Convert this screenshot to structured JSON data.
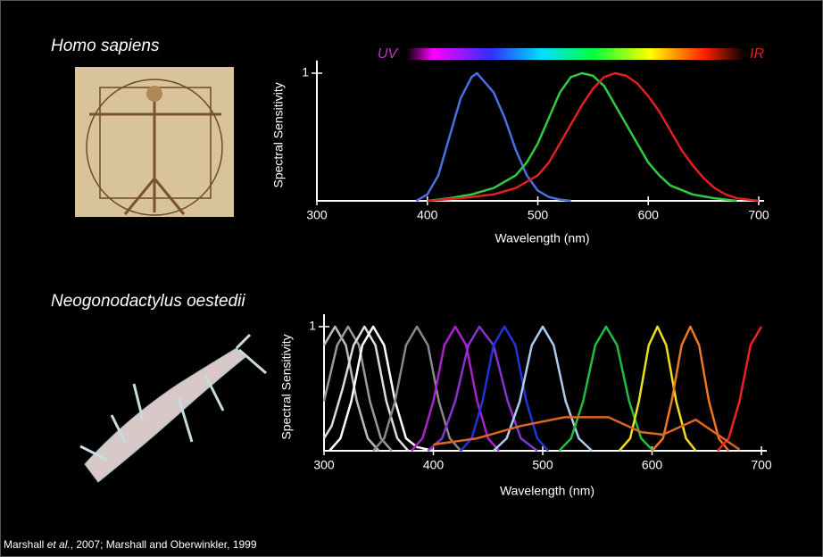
{
  "chart_data": [
    {
      "type": "line",
      "title": "Homo sapiens",
      "xlabel": "Wavelength (nm)",
      "ylabel": "Spectral Sensitivity",
      "annotations": [
        "UV",
        "IR"
      ],
      "xlim": [
        300,
        700
      ],
      "ylim": [
        0,
        1.1
      ],
      "xticks": [
        300,
        400,
        500,
        600,
        700
      ],
      "yticks": [
        1
      ],
      "series": [
        {
          "color": "#4a6fe0",
          "x": [
            390,
            400,
            410,
            420,
            430,
            440,
            445,
            450,
            460,
            470,
            480,
            490,
            500,
            510,
            520,
            530
          ],
          "values": [
            0,
            0.05,
            0.2,
            0.5,
            0.8,
            0.97,
            1,
            0.95,
            0.85,
            0.65,
            0.4,
            0.2,
            0.08,
            0.03,
            0.01,
            0
          ]
        },
        {
          "color": "#2ecc40",
          "x": [
            400,
            420,
            440,
            460,
            480,
            490,
            500,
            510,
            520,
            530,
            540,
            550,
            560,
            570,
            580,
            590,
            600,
            610,
            620,
            640,
            660,
            680
          ],
          "values": [
            0,
            0.02,
            0.05,
            0.1,
            0.2,
            0.3,
            0.45,
            0.65,
            0.85,
            0.97,
            1,
            0.98,
            0.9,
            0.75,
            0.6,
            0.45,
            0.3,
            0.2,
            0.12,
            0.05,
            0.02,
            0
          ]
        },
        {
          "color": "#e02020",
          "x": [
            400,
            430,
            460,
            480,
            500,
            510,
            520,
            530,
            540,
            550,
            560,
            570,
            580,
            590,
            600,
            610,
            620,
            630,
            640,
            650,
            660,
            670,
            680,
            700
          ],
          "values": [
            0,
            0.02,
            0.05,
            0.1,
            0.2,
            0.3,
            0.45,
            0.6,
            0.75,
            0.88,
            0.97,
            1,
            0.98,
            0.92,
            0.82,
            0.7,
            0.55,
            0.4,
            0.28,
            0.18,
            0.1,
            0.05,
            0.02,
            0
          ]
        }
      ]
    },
    {
      "type": "line",
      "title": "Neogonodactylus oestedii",
      "xlabel": "Wavelength (nm)",
      "ylabel": "Spectral Sensitivity",
      "xlim": [
        300,
        700
      ],
      "ylim": [
        0,
        1.1
      ],
      "xticks": [
        300,
        400,
        500,
        600,
        700
      ],
      "yticks": [
        1
      ],
      "series": [
        {
          "color": "#bbbbbb",
          "x": [
            300,
            310,
            320,
            330,
            340,
            350
          ],
          "values": [
            0.85,
            1,
            0.85,
            0.4,
            0.1,
            0
          ]
        },
        {
          "color": "#999999",
          "x": [
            300,
            312,
            322,
            332,
            342,
            352,
            362
          ],
          "values": [
            0.4,
            0.85,
            1,
            0.85,
            0.4,
            0.1,
            0
          ]
        },
        {
          "color": "#dddddd",
          "x": [
            300,
            307,
            317,
            327,
            337,
            347,
            357,
            367,
            377
          ],
          "values": [
            0.1,
            0.2,
            0.5,
            0.85,
            1,
            0.85,
            0.4,
            0.1,
            0
          ]
        },
        {
          "color": "#ffffff",
          "x": [
            305,
            315,
            325,
            335,
            345,
            355,
            365,
            375,
            385,
            400
          ],
          "values": [
            0,
            0.1,
            0.4,
            0.85,
            1,
            0.85,
            0.4,
            0.1,
            0.03,
            0
          ]
        },
        {
          "color": "#888888",
          "x": [
            345,
            355,
            365,
            375,
            385,
            395,
            405,
            415,
            425
          ],
          "values": [
            0,
            0.1,
            0.4,
            0.85,
            1,
            0.85,
            0.4,
            0.1,
            0
          ]
        },
        {
          "color": "#aa22cc",
          "x": [
            380,
            390,
            400,
            410,
            420,
            430,
            440,
            450,
            460
          ],
          "values": [
            0,
            0.1,
            0.4,
            0.85,
            1,
            0.85,
            0.4,
            0.1,
            0
          ]
        },
        {
          "color": "#8833cc",
          "x": [
            395,
            408,
            420,
            432,
            442,
            455,
            468,
            480,
            495
          ],
          "values": [
            0,
            0.1,
            0.4,
            0.85,
            1,
            0.85,
            0.4,
            0.1,
            0
          ]
        },
        {
          "color": "#2233dd",
          "x": [
            425,
            435,
            445,
            455,
            465,
            475,
            485,
            495,
            505
          ],
          "values": [
            0,
            0.1,
            0.4,
            0.85,
            1,
            0.85,
            0.4,
            0.1,
            0
          ]
        },
        {
          "color": "#aaccee",
          "x": [
            455,
            467,
            479,
            490,
            500,
            510,
            521,
            533,
            545
          ],
          "values": [
            0,
            0.1,
            0.4,
            0.85,
            1,
            0.85,
            0.4,
            0.1,
            0
          ]
        },
        {
          "color": "#22bb44",
          "x": [
            515,
            526,
            537,
            548,
            558,
            568,
            579,
            590,
            601
          ],
          "values": [
            0,
            0.1,
            0.4,
            0.85,
            1,
            0.85,
            0.4,
            0.1,
            0
          ]
        },
        {
          "color": "#eedd22",
          "x": [
            570,
            580,
            588,
            597,
            605,
            613,
            622,
            631,
            640
          ],
          "values": [
            0,
            0.1,
            0.4,
            0.85,
            1,
            0.85,
            0.4,
            0.1,
            0
          ]
        },
        {
          "color": "#ee7722",
          "x": [
            600,
            610,
            618,
            627,
            635,
            643,
            652,
            661,
            670
          ],
          "values": [
            0,
            0.1,
            0.4,
            0.85,
            1,
            0.85,
            0.4,
            0.1,
            0
          ]
        },
        {
          "color": "#ee2222",
          "x": [
            660,
            670,
            680,
            690,
            700
          ],
          "values": [
            0,
            0.1,
            0.4,
            0.85,
            1
          ]
        },
        {
          "color": "#dd6622",
          "x": [
            400,
            440,
            480,
            520,
            560,
            590,
            610,
            640,
            680
          ],
          "values": [
            0.05,
            0.1,
            0.2,
            0.27,
            0.27,
            0.15,
            0.13,
            0.25,
            0.01
          ]
        }
      ]
    }
  ],
  "citation": [
    "Marshall ",
    "et al.",
    ", 2007; Marshall and Oberwinkler, 1999"
  ]
}
